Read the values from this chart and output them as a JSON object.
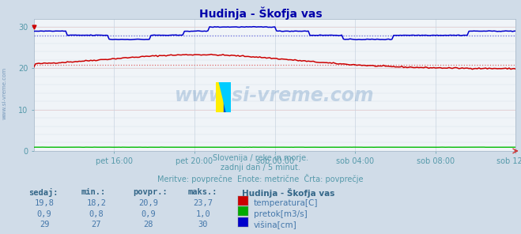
{
  "title": "Hudinja - Škofja vas",
  "fig_bg_color": "#d0dce8",
  "plot_bg_color": "#f0f4f8",
  "grid_color": "#c8d4e0",
  "grid_color_red": "#e8c8c8",
  "xlabel_ticks": [
    "pet 16:00",
    "pet 20:00",
    "sob 00:00",
    "sob 04:00",
    "sob 08:00",
    "sob 12:00"
  ],
  "tick_positions": [
    48,
    96,
    144,
    192,
    240,
    288
  ],
  "xlim": [
    0,
    288
  ],
  "ylim": [
    0,
    32
  ],
  "yticks": [
    0,
    10,
    20,
    30
  ],
  "temp_color": "#cc0000",
  "pretok_color": "#00bb00",
  "visina_color": "#0000cc",
  "avg_temp_color": "#dd6666",
  "avg_visina_color": "#6666dd",
  "title_color": "#0000aa",
  "text_color": "#5599aa",
  "sidebar_color": "#7799bb",
  "watermark_text": "www.si-vreme.com",
  "watermark_color": "#5588bb",
  "watermark_alpha": 0.3,
  "subtitle1": "Slovenija / reke in morje.",
  "subtitle2": "zadnji dan / 5 minut.",
  "subtitle3": "Meritve: povprečne  Enote: metrične  Črta: povprečje",
  "table_headers": [
    "sedaj:",
    "min.:",
    "povpr.:",
    "maks.:"
  ],
  "legend_title": "Hudinja - Škofja vas",
  "legend_items": [
    "temperatura[C]",
    "pretok[m3/s]",
    "višina[cm]"
  ],
  "legend_colors": [
    "#cc0000",
    "#00aa00",
    "#0000cc"
  ],
  "table_data": [
    [
      "19,8",
      "18,2",
      "20,9",
      "23,7"
    ],
    [
      "0,9",
      "0,8",
      "0,9",
      "1,0"
    ],
    [
      "29",
      "27",
      "28",
      "30"
    ]
  ],
  "temp_avg": 20.9,
  "pretok_avg": 0.9,
  "visina_avg": 28.0,
  "logo_yellow": "#ffee00",
  "logo_cyan": "#00ccff",
  "logo_blue": "#0055cc"
}
